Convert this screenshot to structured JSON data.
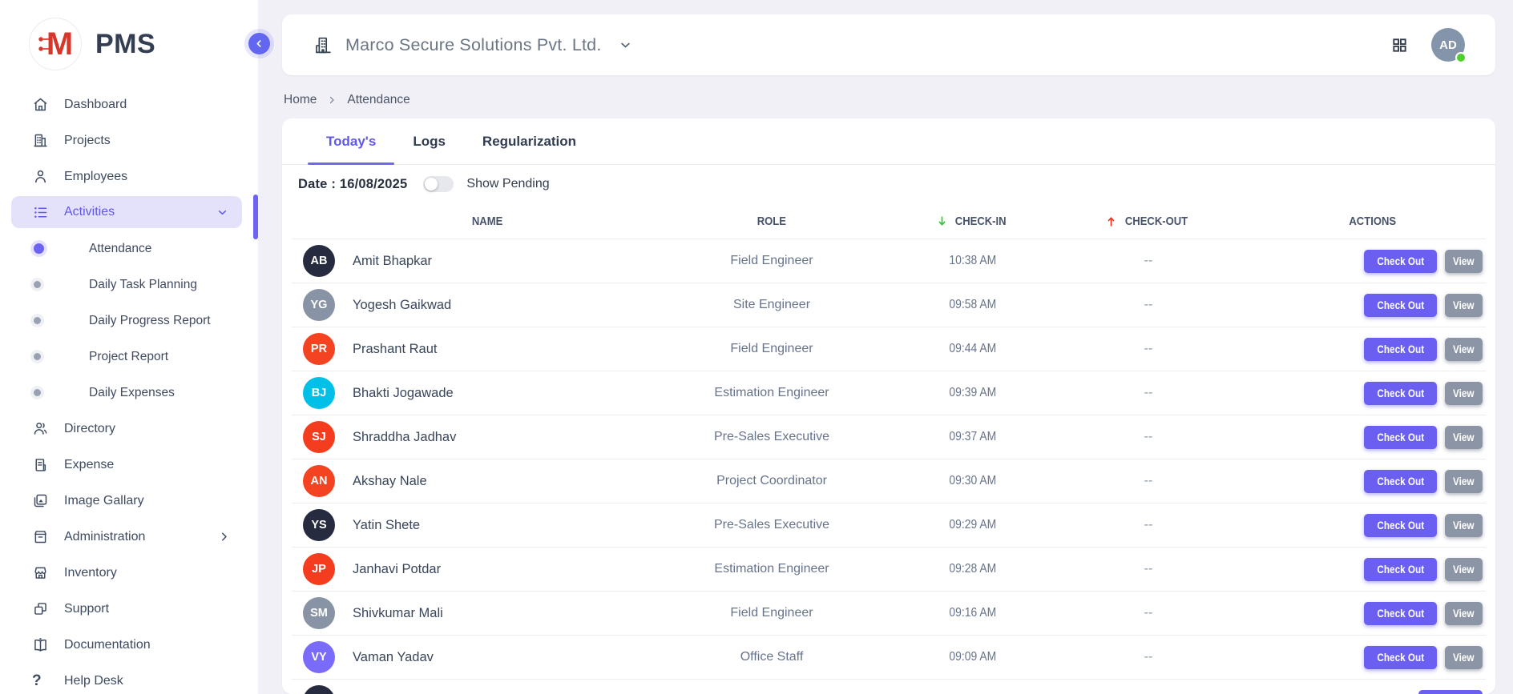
{
  "app": {
    "name": "PMS",
    "logo_letter": "M"
  },
  "header": {
    "company": "Marco Secure Solutions Pvt. Ltd.",
    "avatar_initials": "AD",
    "avatar_status": "online"
  },
  "breadcrumb": {
    "items": [
      "Home",
      "Attendance"
    ]
  },
  "sidebar": {
    "items": [
      {
        "type": "item",
        "icon": "home",
        "label": "Dashboard"
      },
      {
        "type": "item",
        "icon": "building",
        "label": "Projects"
      },
      {
        "type": "item",
        "icon": "person",
        "label": "Employees"
      },
      {
        "type": "item",
        "icon": "list",
        "label": "Activities",
        "active": true,
        "chevron": "down"
      },
      {
        "type": "sub",
        "label": "Attendance",
        "active": true
      },
      {
        "type": "sub",
        "label": "Daily Task Planning"
      },
      {
        "type": "sub",
        "label": "Daily Progress Report"
      },
      {
        "type": "sub",
        "label": "Project Report"
      },
      {
        "type": "sub",
        "label": "Daily Expenses"
      },
      {
        "type": "item",
        "icon": "people",
        "label": "Directory"
      },
      {
        "type": "item",
        "icon": "receipt",
        "label": "Expense"
      },
      {
        "type": "item",
        "icon": "image",
        "label": "Image Gallary"
      },
      {
        "type": "item",
        "icon": "archive",
        "label": "Administration",
        "chevron": "right"
      },
      {
        "type": "item",
        "icon": "store",
        "label": "Inventory"
      },
      {
        "type": "item",
        "icon": "copy",
        "label": "Support"
      },
      {
        "type": "item",
        "icon": "book",
        "label": "Documentation"
      },
      {
        "type": "item",
        "icon": "question",
        "label": "Help Desk"
      }
    ]
  },
  "tabs": [
    {
      "label": "Today's",
      "active": true
    },
    {
      "label": "Logs"
    },
    {
      "label": "Regularization"
    }
  ],
  "filters": {
    "date_label": "Date : 16/08/2025",
    "toggle_label": "Show Pending",
    "toggle_on": false
  },
  "table": {
    "columns": [
      {
        "label": "NAME"
      },
      {
        "label": "ROLE"
      },
      {
        "label": "CHECK-IN",
        "arrow": "down",
        "arrow_color": "#2fc62f"
      },
      {
        "label": "CHECK-OUT",
        "arrow": "up",
        "arrow_color": "#f4321c"
      },
      {
        "label": "ACTIONS"
      }
    ],
    "action_labels": {
      "primary": "Check Out",
      "secondary": "View"
    },
    "rows": [
      {
        "initials": "AB",
        "color": "#262b40",
        "name": "Amit Bhapkar",
        "role": "Field Engineer",
        "check_in": "10:38 AM",
        "check_out": "--"
      },
      {
        "initials": "YG",
        "color": "#8894a6",
        "name": "Yogesh Gaikwad",
        "role": "Site Engineer",
        "check_in": "09:58 AM",
        "check_out": "--"
      },
      {
        "initials": "PR",
        "color": "#f44321",
        "name": "Prashant Raut",
        "role": "Field Engineer",
        "check_in": "09:44 AM",
        "check_out": "--"
      },
      {
        "initials": "BJ",
        "color": "#00c0e8",
        "name": "Bhakti Jogawade",
        "role": "Estimation Engineer",
        "check_in": "09:39 AM",
        "check_out": "--"
      },
      {
        "initials": "SJ",
        "color": "#f43d1e",
        "name": "Shraddha Jadhav",
        "role": "Pre-Sales Executive",
        "check_in": "09:37 AM",
        "check_out": "--"
      },
      {
        "initials": "AN",
        "color": "#f44321",
        "name": "Akshay Nale",
        "role": "Project Coordinator",
        "check_in": "09:30 AM",
        "check_out": "--"
      },
      {
        "initials": "YS",
        "color": "#262b40",
        "name": "Yatin Shete",
        "role": "Pre-Sales Executive",
        "check_in": "09:29 AM",
        "check_out": "--"
      },
      {
        "initials": "JP",
        "color": "#f43d1e",
        "name": "Janhavi Potdar",
        "role": "Estimation Engineer",
        "check_in": "09:28 AM",
        "check_out": "--"
      },
      {
        "initials": "SM",
        "color": "#8894a6",
        "name": "Shivkumar Mali",
        "role": "Field Engineer",
        "check_in": "09:16 AM",
        "check_out": "--"
      },
      {
        "initials": "VY",
        "color": "#7a6bfb",
        "name": "Vaman Yadav",
        "role": "Office Staff",
        "check_in": "09:09 AM",
        "check_out": "--"
      },
      {
        "partial": true,
        "color": "#262b40"
      }
    ]
  },
  "colors": {
    "accent": "#6158e8",
    "active_pill_bg": "#e4e1fb",
    "primary_button": "#6a5ff1",
    "secondary_button": "#8b95a5",
    "arrow_green": "#2fc62f",
    "arrow_red": "#f4321c",
    "online_green": "#4ed02c",
    "logo_red": "#d8362a"
  }
}
